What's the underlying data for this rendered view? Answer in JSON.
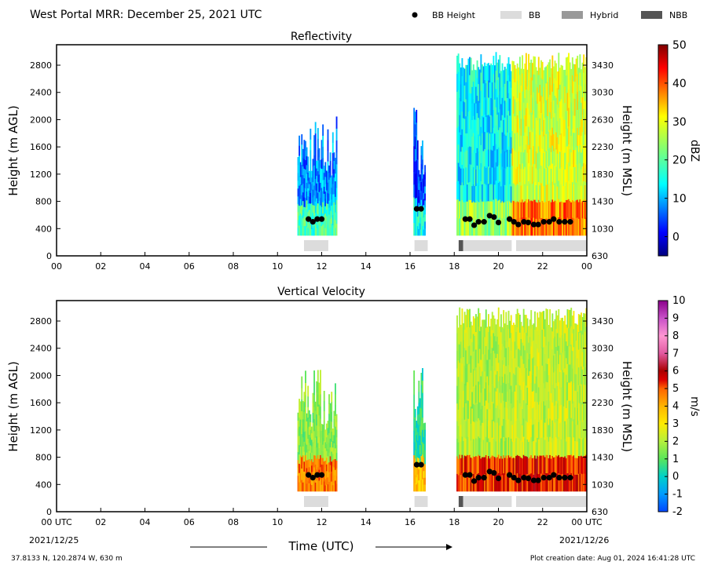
{
  "header": {
    "title": "West Portal MRR:  December 25, 2021 UTC",
    "legend": [
      {
        "label": "BB Height",
        "kind": "dot",
        "color": "#000000"
      },
      {
        "label": "BB",
        "kind": "swatch",
        "color": "#dcdcdc"
      },
      {
        "label": "Hybrid",
        "kind": "swatch",
        "color": "#999999"
      },
      {
        "label": "NBB",
        "kind": "swatch",
        "color": "#555555"
      }
    ]
  },
  "footer": {
    "location": "37.8133 N, 120.2874 W, 630 m",
    "created": "Plot creation date: Aug 01, 2024 16:41:28 UTC",
    "xlabel": "Time (UTC)",
    "start_date": "2021/12/25",
    "end_date": "2021/12/26"
  },
  "colors": {
    "bb": "#dcdcdc",
    "hybrid": "#999999",
    "nbb": "#555555",
    "bb_height": "#000000"
  },
  "chart_data": [
    {
      "type": "heatmap",
      "title": "Reflectivity",
      "ylabel": "Height (m AGL)",
      "ylabel_right": "Height (m MSL)",
      "xlim": [
        0,
        24
      ],
      "ylim": [
        0,
        3100
      ],
      "xticks": [
        "00",
        "02",
        "04",
        "06",
        "08",
        "10",
        "12",
        "14",
        "16",
        "18",
        "20",
        "22",
        "00"
      ],
      "yticks": [
        0,
        400,
        800,
        1200,
        1600,
        2000,
        2400,
        2800
      ],
      "yticks_right": [
        630,
        1030,
        1430,
        1830,
        2230,
        2630,
        3030,
        3430
      ],
      "colorbar": {
        "label": "dBZ",
        "min": -5,
        "max": 50,
        "ticks": [
          0,
          10,
          20,
          30,
          40,
          50
        ]
      },
      "precip_segments": [
        {
          "start": 10.9,
          "end": 12.7,
          "bottom": 300,
          "top": 2100,
          "level": 8
        },
        {
          "start": 16.15,
          "end": 16.7,
          "bottom": 300,
          "top": 2200,
          "level": 5
        },
        {
          "start": 18.1,
          "end": 20.6,
          "bottom": 300,
          "top": 3000,
          "level": 14
        },
        {
          "start": 20.6,
          "end": 24.0,
          "bottom": 300,
          "top": 3000,
          "level": 28
        }
      ],
      "bb_heights": [
        {
          "t": 11.4,
          "h": 540
        },
        {
          "t": 11.6,
          "h": 500
        },
        {
          "t": 11.8,
          "h": 540
        },
        {
          "t": 12.0,
          "h": 540
        },
        {
          "t": 16.3,
          "h": 690
        },
        {
          "t": 16.5,
          "h": 690
        },
        {
          "t": 18.5,
          "h": 540
        },
        {
          "t": 18.7,
          "h": 540
        },
        {
          "t": 18.9,
          "h": 450
        },
        {
          "t": 19.1,
          "h": 500
        },
        {
          "t": 19.35,
          "h": 500
        },
        {
          "t": 19.6,
          "h": 590
        },
        {
          "t": 19.8,
          "h": 570
        },
        {
          "t": 20.0,
          "h": 490
        },
        {
          "t": 20.5,
          "h": 540
        },
        {
          "t": 20.7,
          "h": 500
        },
        {
          "t": 20.9,
          "h": 460
        },
        {
          "t": 21.15,
          "h": 500
        },
        {
          "t": 21.35,
          "h": 490
        },
        {
          "t": 21.6,
          "h": 460
        },
        {
          "t": 21.8,
          "h": 460
        },
        {
          "t": 22.05,
          "h": 500
        },
        {
          "t": 22.3,
          "h": 500
        },
        {
          "t": 22.5,
          "h": 540
        },
        {
          "t": 22.75,
          "h": 500
        },
        {
          "t": 23.0,
          "h": 500
        },
        {
          "t": 23.25,
          "h": 500
        }
      ],
      "bb_bars": [
        {
          "start": 11.2,
          "end": 12.3,
          "type": "BB"
        },
        {
          "start": 16.2,
          "end": 16.8,
          "type": "BB"
        },
        {
          "start": 18.2,
          "end": 18.4,
          "type": "NBB"
        },
        {
          "start": 18.4,
          "end": 20.6,
          "type": "BB"
        },
        {
          "start": 20.8,
          "end": 24.0,
          "type": "BB"
        }
      ]
    },
    {
      "type": "heatmap",
      "title": "Vertical Velocity",
      "ylabel": "Height (m AGL)",
      "ylabel_right": "Height (m MSL)",
      "xlim": [
        0,
        24
      ],
      "ylim": [
        0,
        3100
      ],
      "xticks": [
        "00 UTC",
        "02",
        "04",
        "06",
        "08",
        "10",
        "12",
        "14",
        "16",
        "18",
        "20",
        "22",
        "00 UTC"
      ],
      "yticks": [
        0,
        400,
        800,
        1200,
        1600,
        2000,
        2400,
        2800
      ],
      "yticks_right": [
        630,
        1030,
        1430,
        1830,
        2230,
        2630,
        3030,
        3430
      ],
      "colorbar": {
        "label": "m/s",
        "min": -2,
        "max": 10,
        "ticks": [
          -2,
          -1,
          0,
          1,
          2,
          3,
          4,
          5,
          6,
          7,
          8,
          9,
          10
        ]
      },
      "precip_segments": [
        {
          "start": 10.9,
          "end": 12.7,
          "bottom": 300,
          "top": 2100,
          "level": 1.5
        },
        {
          "start": 16.15,
          "end": 16.7,
          "bottom": 300,
          "top": 2200,
          "level": 0.5
        },
        {
          "start": 18.1,
          "end": 20.6,
          "bottom": 300,
          "top": 3000,
          "level": 2.0
        },
        {
          "start": 20.6,
          "end": 24.0,
          "bottom": 300,
          "top": 3000,
          "level": 2.2
        }
      ],
      "bb_heights": [
        {
          "t": 11.4,
          "h": 540
        },
        {
          "t": 11.6,
          "h": 500
        },
        {
          "t": 11.8,
          "h": 540
        },
        {
          "t": 12.0,
          "h": 540
        },
        {
          "t": 16.3,
          "h": 690
        },
        {
          "t": 16.5,
          "h": 690
        },
        {
          "t": 18.5,
          "h": 540
        },
        {
          "t": 18.7,
          "h": 540
        },
        {
          "t": 18.9,
          "h": 450
        },
        {
          "t": 19.1,
          "h": 500
        },
        {
          "t": 19.35,
          "h": 500
        },
        {
          "t": 19.6,
          "h": 590
        },
        {
          "t": 19.8,
          "h": 570
        },
        {
          "t": 20.0,
          "h": 490
        },
        {
          "t": 20.5,
          "h": 540
        },
        {
          "t": 20.7,
          "h": 500
        },
        {
          "t": 20.9,
          "h": 460
        },
        {
          "t": 21.15,
          "h": 500
        },
        {
          "t": 21.35,
          "h": 490
        },
        {
          "t": 21.6,
          "h": 460
        },
        {
          "t": 21.8,
          "h": 460
        },
        {
          "t": 22.05,
          "h": 500
        },
        {
          "t": 22.3,
          "h": 500
        },
        {
          "t": 22.5,
          "h": 540
        },
        {
          "t": 22.75,
          "h": 500
        },
        {
          "t": 23.0,
          "h": 500
        },
        {
          "t": 23.25,
          "h": 500
        }
      ],
      "bb_bars": [
        {
          "start": 11.2,
          "end": 12.3,
          "type": "BB"
        },
        {
          "start": 16.2,
          "end": 16.8,
          "type": "BB"
        },
        {
          "start": 18.2,
          "end": 18.4,
          "type": "NBB"
        },
        {
          "start": 18.4,
          "end": 20.6,
          "type": "BB"
        },
        {
          "start": 20.8,
          "end": 24.0,
          "type": "BB"
        }
      ]
    }
  ]
}
